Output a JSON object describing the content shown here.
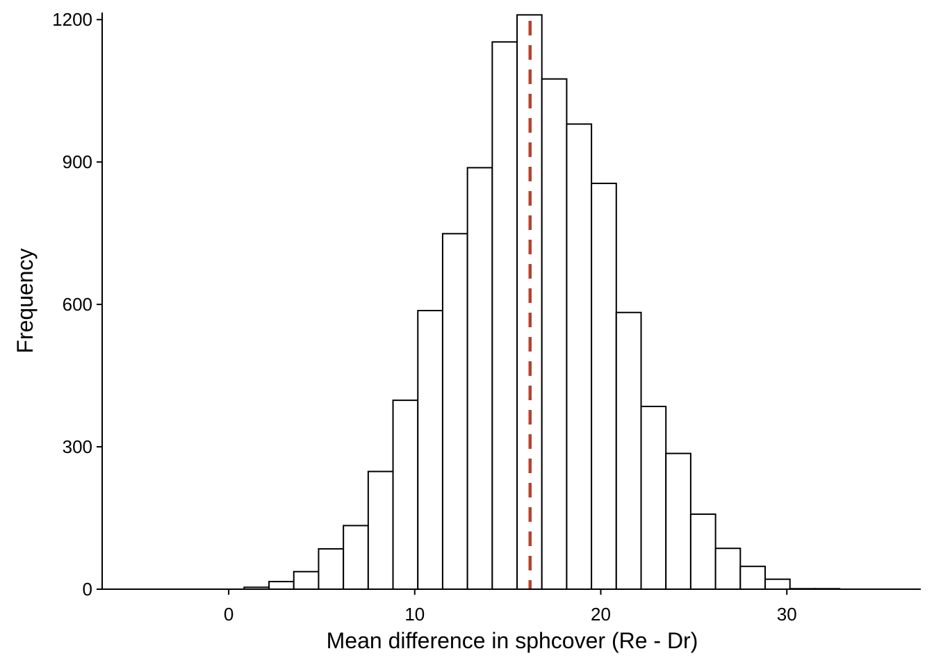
{
  "chart_data": {
    "type": "histogram",
    "title": "",
    "xlabel": "Mean difference in sphcover (Re - Dr)",
    "ylabel": "Frequency",
    "xlim": [
      -6.8,
      37.2
    ],
    "ylim": [
      0,
      1215
    ],
    "x_ticks": [
      0,
      10,
      20,
      30
    ],
    "y_ticks": [
      0,
      300,
      600,
      900,
      1200
    ],
    "bin_edges": [
      -0.5,
      0.833,
      2.167,
      3.5,
      4.833,
      6.167,
      7.5,
      8.833,
      10.167,
      11.5,
      12.833,
      14.167,
      15.5,
      16.833,
      18.167,
      19.5,
      20.833,
      22.167,
      23.5,
      24.833,
      26.167,
      27.5,
      28.833,
      30.167,
      31.5,
      32.833
    ],
    "counts": [
      0,
      4,
      16,
      37,
      85,
      134,
      248,
      398,
      587,
      749,
      888,
      1153,
      1210,
      1075,
      980,
      855,
      583,
      385,
      286,
      158,
      86,
      48,
      21,
      1,
      1
    ],
    "bar_fill": "#ffffff",
    "bar_stroke": "#000000",
    "reference_line": {
      "x": 16.2,
      "color": "#b5432c",
      "style": "dashed"
    },
    "grid": false,
    "legend": "none"
  }
}
